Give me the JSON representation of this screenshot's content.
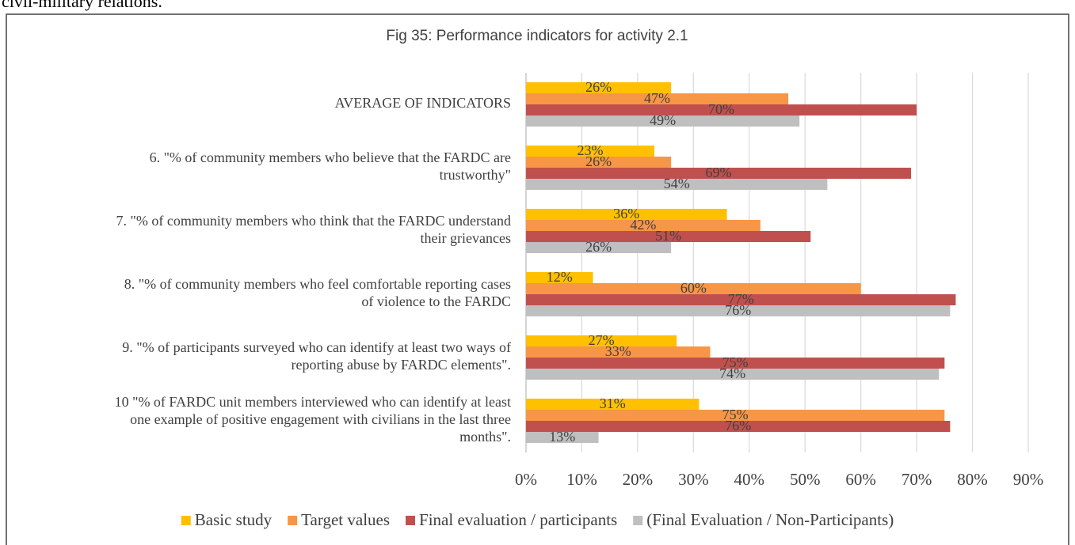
{
  "page_text": "civil-military relations.",
  "chart_data": {
    "type": "hbar",
    "title": "Fig 35: Performance indicators for activity 2.1",
    "categories": [
      "AVERAGE OF INDICATORS",
      "6. \"% of community members who believe that the FARDC are\ntrustworthy\"",
      "7. \"% of community members who think that the FARDC understand\ntheir grievances",
      "8. \"% of community members who feel comfortable reporting cases\nof violence to the FARDC",
      "9. \"% of participants surveyed who can identify at least two ways of\nreporting abuse by FARDC elements\".",
      "10 \"% of FARDC unit members interviewed who can identify at least\none example of positive engagement with civilians in the last three\nmonths\"."
    ],
    "series": [
      {
        "name": "Basic study",
        "color": "#FFC000",
        "values": [
          26,
          23,
          36,
          12,
          27,
          31
        ],
        "value_labels": [
          "26%",
          "23%",
          "36%",
          "12%",
          "27%",
          "31%"
        ]
      },
      {
        "name": "Target values",
        "color": "#F79646",
        "values": [
          47,
          26,
          42,
          60,
          33,
          75
        ],
        "value_labels": [
          "47%",
          "26%",
          "42%",
          "60%",
          "33%",
          "75%"
        ]
      },
      {
        "name": "Final evaluation / participants",
        "color": "#C0504D",
        "values": [
          70,
          69,
          51,
          77,
          75,
          76
        ],
        "value_labels": [
          "70%",
          "69%",
          "51%",
          "77%",
          "75%",
          "76%"
        ]
      },
      {
        "name": "(Final Evaluation / Non-Participants)",
        "color": "#BFBFBF",
        "values": [
          49,
          54,
          26,
          76,
          74,
          13
        ],
        "value_labels": [
          "49%",
          "54%",
          "26%",
          "76%",
          "74%",
          "13%"
        ]
      }
    ],
    "xlim": [
      0,
      90
    ],
    "xticks": [
      {
        "value": 0,
        "label": "0%"
      },
      {
        "value": 10,
        "label": "10%"
      },
      {
        "value": 20,
        "label": "20%"
      },
      {
        "value": 30,
        "label": "30%"
      },
      {
        "value": 40,
        "label": "40%"
      },
      {
        "value": 50,
        "label": "50%"
      },
      {
        "value": 60,
        "label": "60%"
      },
      {
        "value": 70,
        "label": "70%"
      },
      {
        "value": 80,
        "label": "80%"
      },
      {
        "value": 90,
        "label": "90%"
      }
    ],
    "grid": true,
    "legend": "bottom"
  }
}
